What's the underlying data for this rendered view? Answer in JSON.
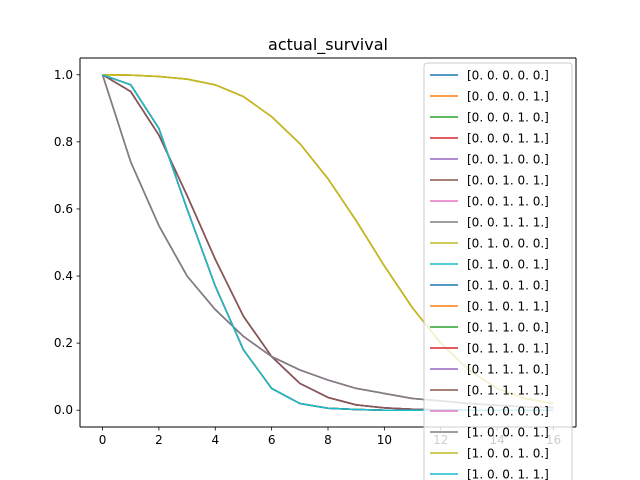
{
  "chart_data": {
    "type": "line",
    "title": "actual_survival",
    "xlabel": "",
    "ylabel": "",
    "xlim": [
      -0.8,
      16.8
    ],
    "ylim": [
      -0.05,
      1.05
    ],
    "x_ticks": [
      0,
      2,
      4,
      6,
      8,
      10,
      12,
      14,
      16
    ],
    "y_ticks": [
      0.0,
      0.2,
      0.4,
      0.6,
      0.8,
      1.0
    ],
    "y_tick_labels": [
      "0.0",
      "0.2",
      "0.4",
      "0.6",
      "0.8",
      "1.0"
    ],
    "grid": false,
    "legend_position": "upper-right",
    "x": [
      0,
      1,
      2,
      3,
      4,
      5,
      6,
      7,
      8,
      9,
      10,
      11,
      12,
      13,
      14,
      15,
      16
    ],
    "series": [
      {
        "name": "[0. 0. 0. 0. 0.]",
        "color": "#1f77b4",
        "values": [
          1.0,
          0.74,
          0.55,
          0.4,
          0.3,
          0.22,
          0.16,
          0.12,
          0.09,
          0.065,
          0.05,
          0.035,
          0.028,
          0.02,
          0.015,
          0.01,
          0.008
        ]
      },
      {
        "name": "[0. 0. 0. 0. 1.]",
        "color": "#ff7f0e",
        "values": [
          1.0,
          0.999,
          0.995,
          0.987,
          0.97,
          0.935,
          0.875,
          0.795,
          0.69,
          0.565,
          0.43,
          0.305,
          0.2,
          0.12,
          0.065,
          0.035,
          0.02
        ]
      },
      {
        "name": "[0. 0. 0. 1. 0.]",
        "color": "#2ca02c",
        "values": [
          1.0,
          0.97,
          0.84,
          0.6,
          0.37,
          0.18,
          0.065,
          0.02,
          0.006,
          0.002,
          0.0,
          0.0,
          0.0,
          0.0,
          0.0,
          0.0,
          0.0
        ]
      },
      {
        "name": "[0. 0. 0. 1. 1.]",
        "color": "#d62728",
        "values": [
          1.0,
          0.97,
          0.84,
          0.6,
          0.37,
          0.18,
          0.065,
          0.02,
          0.006,
          0.002,
          0.0,
          0.0,
          0.0,
          0.0,
          0.0,
          0.0,
          0.0
        ]
      },
      {
        "name": "[0. 0. 1. 0. 0.]",
        "color": "#9467bd",
        "values": [
          1.0,
          0.95,
          0.82,
          0.64,
          0.45,
          0.28,
          0.16,
          0.08,
          0.038,
          0.016,
          0.007,
          0.003,
          0.001,
          0.0,
          0.0,
          0.0,
          0.0
        ]
      },
      {
        "name": "[0. 0. 1. 0. 1.]",
        "color": "#8c564b",
        "values": [
          1.0,
          0.95,
          0.82,
          0.64,
          0.45,
          0.28,
          0.16,
          0.08,
          0.038,
          0.016,
          0.007,
          0.003,
          0.001,
          0.0,
          0.0,
          0.0,
          0.0
        ]
      },
      {
        "name": "[0. 0. 1. 1. 0.]",
        "color": "#e377c2",
        "values": [
          1.0,
          0.74,
          0.55,
          0.4,
          0.3,
          0.22,
          0.16,
          0.12,
          0.09,
          0.065,
          0.05,
          0.035,
          0.028,
          0.02,
          0.015,
          0.01,
          0.008
        ]
      },
      {
        "name": "[0. 0. 1. 1. 1.]",
        "color": "#7f7f7f",
        "values": [
          1.0,
          0.74,
          0.55,
          0.4,
          0.3,
          0.22,
          0.16,
          0.12,
          0.09,
          0.065,
          0.05,
          0.035,
          0.028,
          0.02,
          0.015,
          0.01,
          0.008
        ]
      },
      {
        "name": "[0. 1. 0. 0. 0.]",
        "color": "#bcbd22",
        "values": [
          1.0,
          0.999,
          0.995,
          0.987,
          0.97,
          0.935,
          0.875,
          0.795,
          0.69,
          0.565,
          0.43,
          0.305,
          0.2,
          0.12,
          0.065,
          0.035,
          0.02
        ]
      },
      {
        "name": "[0. 1. 0. 0. 1.]",
        "color": "#17becf",
        "values": [
          1.0,
          0.97,
          0.84,
          0.6,
          0.37,
          0.18,
          0.065,
          0.02,
          0.006,
          0.002,
          0.0,
          0.0,
          0.0,
          0.0,
          0.0,
          0.0,
          0.0
        ]
      },
      {
        "name": "[0. 1. 0. 1. 0.]",
        "color": "#1f77b4",
        "values": [
          1.0,
          0.95,
          0.82,
          0.64,
          0.45,
          0.28,
          0.16,
          0.08,
          0.038,
          0.016,
          0.007,
          0.003,
          0.001,
          0.0,
          0.0,
          0.0,
          0.0
        ]
      },
      {
        "name": "[0. 1. 0. 1. 1.]",
        "color": "#ff7f0e",
        "values": [
          1.0,
          0.999,
          0.995,
          0.987,
          0.97,
          0.935,
          0.875,
          0.795,
          0.69,
          0.565,
          0.43,
          0.305,
          0.2,
          0.12,
          0.065,
          0.035,
          0.02
        ]
      },
      {
        "name": "[0. 1. 1. 0. 0.]",
        "color": "#2ca02c",
        "values": [
          1.0,
          0.97,
          0.84,
          0.6,
          0.37,
          0.18,
          0.065,
          0.02,
          0.006,
          0.002,
          0.0,
          0.0,
          0.0,
          0.0,
          0.0,
          0.0,
          0.0
        ]
      },
      {
        "name": "[0. 1. 1. 0. 1.]",
        "color": "#d62728",
        "values": [
          1.0,
          0.97,
          0.84,
          0.6,
          0.37,
          0.18,
          0.065,
          0.02,
          0.006,
          0.002,
          0.0,
          0.0,
          0.0,
          0.0,
          0.0,
          0.0,
          0.0
        ]
      },
      {
        "name": "[0. 1. 1. 1. 0.]",
        "color": "#9467bd",
        "values": [
          1.0,
          0.95,
          0.82,
          0.64,
          0.45,
          0.28,
          0.16,
          0.08,
          0.038,
          0.016,
          0.007,
          0.003,
          0.001,
          0.0,
          0.0,
          0.0,
          0.0
        ]
      },
      {
        "name": "[0. 1. 1. 1. 1.]",
        "color": "#8c564b",
        "values": [
          1.0,
          0.95,
          0.82,
          0.64,
          0.45,
          0.28,
          0.16,
          0.08,
          0.038,
          0.016,
          0.007,
          0.003,
          0.001,
          0.0,
          0.0,
          0.0,
          0.0
        ]
      },
      {
        "name": "[1. 0. 0. 0. 0.]",
        "color": "#e377c2",
        "values": [
          1.0,
          0.74,
          0.55,
          0.4,
          0.3,
          0.22,
          0.16,
          0.12,
          0.09,
          0.065,
          0.05,
          0.035,
          0.028,
          0.02,
          0.015,
          0.01,
          0.008
        ]
      },
      {
        "name": "[1. 0. 0. 0. 1.]",
        "color": "#7f7f7f",
        "values": [
          1.0,
          0.74,
          0.55,
          0.4,
          0.3,
          0.22,
          0.16,
          0.12,
          0.09,
          0.065,
          0.05,
          0.035,
          0.028,
          0.02,
          0.015,
          0.01,
          0.008
        ]
      },
      {
        "name": "[1. 0. 0. 1. 0.]",
        "color": "#bcbd22",
        "values": [
          1.0,
          0.999,
          0.995,
          0.987,
          0.97,
          0.935,
          0.875,
          0.795,
          0.69,
          0.565,
          0.43,
          0.305,
          0.2,
          0.12,
          0.065,
          0.035,
          0.02
        ]
      },
      {
        "name": "[1. 0. 0. 1. 1.]",
        "color": "#17becf",
        "values": [
          1.0,
          0.97,
          0.84,
          0.6,
          0.37,
          0.18,
          0.065,
          0.02,
          0.006,
          0.002,
          0.0,
          0.0,
          0.0,
          0.0,
          0.0,
          0.0,
          0.0
        ]
      }
    ]
  }
}
